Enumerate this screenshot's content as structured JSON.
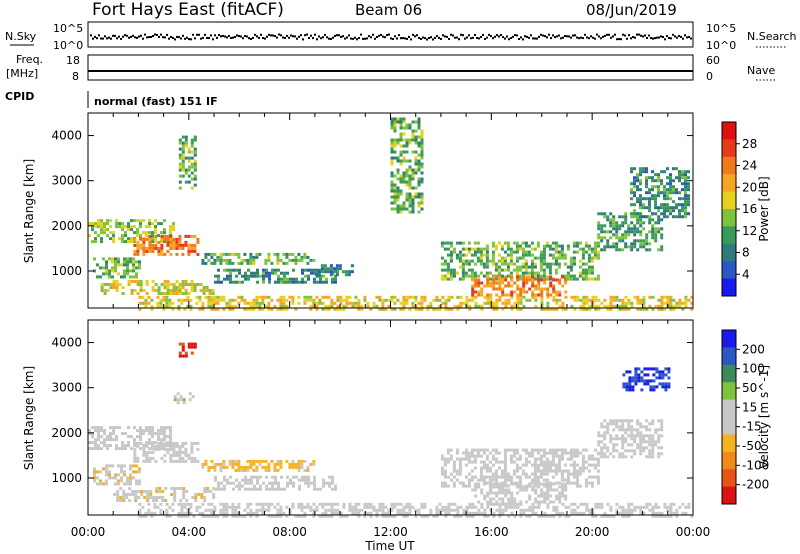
{
  "header": {
    "station": "Fort Hays East (fitACF)",
    "beam": "Beam 06",
    "date": "08/Jun/2019"
  },
  "noise_panel": {
    "left_label": "N.Sky",
    "left_ticks": [
      "10^5",
      "10^0"
    ],
    "right_label": "N.Search",
    "right_ticks": [
      "10^5",
      "10^0"
    ]
  },
  "freq_panel": {
    "left_label_line1": "Freq.",
    "left_label_line2": "[MHz]",
    "left_ticks": [
      "18",
      "8"
    ],
    "right_label": "Nave",
    "right_ticks": [
      "60",
      "0"
    ],
    "freq_value_mhz": 10.6
  },
  "cpid": {
    "label": "CPID",
    "mode_text": "normal (fast) 151 IF"
  },
  "x_axis": {
    "label": "Time UT",
    "ticks": [
      "00:00",
      "04:00",
      "08:00",
      "12:00",
      "16:00",
      "20:00",
      "00:00"
    ]
  },
  "colors": {
    "power_scale": [
      "#1a1aee",
      "#2a57c4",
      "#2f7a7c",
      "#3a9a5a",
      "#7fc23e",
      "#e6d21e",
      "#f5a623",
      "#f07a1a",
      "#e63a1a",
      "#dd1111"
    ],
    "velocity_scale": [
      "#1a1aee",
      "#2a57c4",
      "#3a8a5a",
      "#7fc23e",
      "#c8c8c8",
      "#c8c8c8",
      "#f5b323",
      "#f08a1a",
      "#e85418",
      "#dd1111"
    ]
  },
  "chart_data": [
    {
      "type": "heatmap",
      "title": "",
      "xlabel": "Time UT",
      "ylabel": "Slant Range [km]",
      "xlim": [
        0,
        24
      ],
      "ylim": [
        180,
        4500
      ],
      "x_ticks": [
        "00:00",
        "04:00",
        "08:00",
        "12:00",
        "16:00",
        "20:00",
        "00:00"
      ],
      "y_ticks": [
        1000,
        2000,
        3000,
        4000
      ],
      "colorbar": {
        "label": "Power [dB]",
        "ticks": [
          4,
          8,
          12,
          16,
          20,
          24,
          28
        ],
        "range": [
          0,
          30
        ]
      },
      "regions": [
        {
          "t0": 0.0,
          "t1": 3.4,
          "r0": 1650,
          "r1": 2150,
          "value": 14
        },
        {
          "t0": 1.8,
          "t1": 4.4,
          "r0": 1350,
          "r1": 1800,
          "value": 22
        },
        {
          "t0": 0.2,
          "t1": 2.0,
          "r0": 900,
          "r1": 1300,
          "value": 12
        },
        {
          "t0": 4.5,
          "t1": 9.0,
          "r0": 1150,
          "r1": 1400,
          "value": 12
        },
        {
          "t0": 5.0,
          "t1": 9.8,
          "r0": 750,
          "r1": 1050,
          "value": 9
        },
        {
          "t0": 0.5,
          "t1": 5.0,
          "r0": 500,
          "r1": 800,
          "value": 16
        },
        {
          "t0": 9.0,
          "t1": 10.5,
          "r0": 900,
          "r1": 1150,
          "value": 8
        },
        {
          "t0": 2.0,
          "t1": 24.0,
          "r0": 180,
          "r1": 450,
          "value": 17
        },
        {
          "t0": 14.0,
          "t1": 20.2,
          "r0": 850,
          "r1": 1650,
          "value": 12
        },
        {
          "t0": 15.2,
          "t1": 19.0,
          "r0": 500,
          "r1": 900,
          "value": 22
        },
        {
          "t0": 20.2,
          "t1": 22.8,
          "r0": 1450,
          "r1": 2300,
          "value": 10
        },
        {
          "t0": 21.5,
          "t1": 23.8,
          "r0": 2200,
          "r1": 3300,
          "value": 9
        },
        {
          "t0": 12.0,
          "t1": 13.2,
          "r0": 2300,
          "r1": 4400,
          "value": 12
        },
        {
          "t0": 3.6,
          "t1": 4.3,
          "r0": 2800,
          "r1": 4000,
          "value": 12
        }
      ]
    },
    {
      "type": "heatmap",
      "title": "",
      "xlabel": "Time UT",
      "ylabel": "Slant Range [km]",
      "xlim": [
        0,
        24
      ],
      "ylim": [
        180,
        4500
      ],
      "x_ticks": [
        "00:00",
        "04:00",
        "08:00",
        "12:00",
        "16:00",
        "20:00",
        "00:00"
      ],
      "y_ticks": [
        1000,
        2000,
        3000,
        4000
      ],
      "colorbar": {
        "label": "Velocity [m s^-1]",
        "ticks": [
          "200",
          "100",
          "50",
          "15",
          "-15",
          "-50",
          "-100",
          "-200"
        ],
        "range": [
          -250,
          250
        ]
      },
      "regions": [
        {
          "t0": 0.0,
          "t1": 3.4,
          "r0": 1650,
          "r1": 2150,
          "value": 0
        },
        {
          "t0": 1.8,
          "t1": 4.4,
          "r0": 1350,
          "r1": 1800,
          "value": 0
        },
        {
          "t0": 0.2,
          "t1": 2.0,
          "r0": 900,
          "r1": 1300,
          "value": -40
        },
        {
          "t0": 4.5,
          "t1": 9.0,
          "r0": 1150,
          "r1": 1400,
          "value": -60
        },
        {
          "t0": 1.0,
          "t1": 5.0,
          "r0": 500,
          "r1": 800,
          "value": -40
        },
        {
          "t0": 5.0,
          "t1": 9.8,
          "r0": 750,
          "r1": 1050,
          "value": 30
        },
        {
          "t0": 2.0,
          "t1": 24.0,
          "r0": 180,
          "r1": 450,
          "value": -30
        },
        {
          "t0": 14.0,
          "t1": 20.2,
          "r0": 850,
          "r1": 1650,
          "value": 0
        },
        {
          "t0": 15.2,
          "t1": 19.0,
          "r0": 500,
          "r1": 900,
          "value": 0
        },
        {
          "t0": 20.2,
          "t1": 22.8,
          "r0": 1450,
          "r1": 2300,
          "value": 0
        },
        {
          "t0": 21.2,
          "t1": 23.0,
          "r0": 2950,
          "r1": 3450,
          "value": 200
        },
        {
          "t0": 3.6,
          "t1": 4.2,
          "r0": 3700,
          "r1": 4000,
          "value": -200
        },
        {
          "t0": 3.4,
          "t1": 4.2,
          "r0": 2700,
          "r1": 2900,
          "value": 40
        }
      ]
    }
  ]
}
